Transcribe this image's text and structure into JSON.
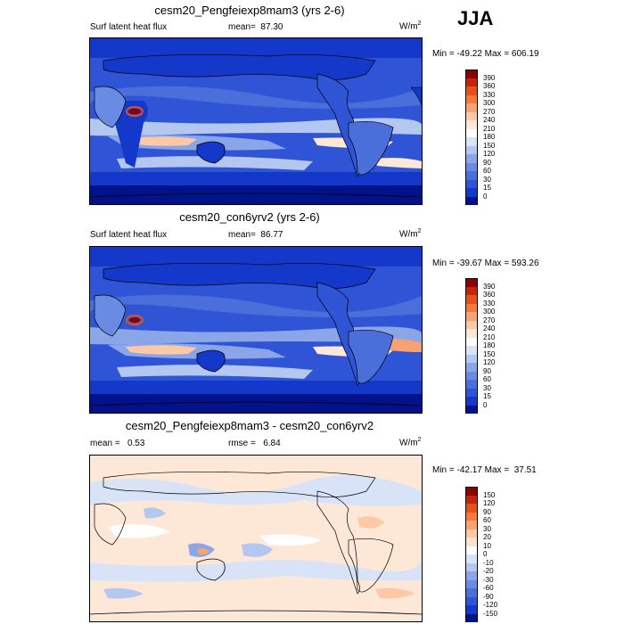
{
  "season": "JJA",
  "panels": [
    {
      "title": "cesm20_Pengfeiexp8mam3 (yrs 2-6)",
      "left_label": "Surf latent heat flux",
      "stat_label": "mean=",
      "stat_value": "87.30",
      "units_base": "W/m",
      "units_exp": "2",
      "minmax": "Min = -49.22 Max = 606.19",
      "levels": [
        "390",
        "360",
        "330",
        "300",
        "270",
        "240",
        "210",
        "180",
        "150",
        "120",
        "90",
        "60",
        "30",
        "15",
        "0"
      ],
      "colors": [
        "#8b0000",
        "#c4240c",
        "#e6501a",
        "#f47a3c",
        "#f9a271",
        "#fcc8a6",
        "#fde8d8",
        "#ffffff",
        "#d9e3f7",
        "#b3c7f0",
        "#8aa6e8",
        "#6a8be3",
        "#4a6fdb",
        "#2f55d6",
        "#1438c9",
        "#02128a"
      ]
    },
    {
      "title": "cesm20_con6yrv2 (yrs 2-6)",
      "left_label": "Surf latent heat flux",
      "stat_label": "mean=",
      "stat_value": "86.77",
      "units_base": "W/m",
      "units_exp": "2",
      "minmax": "Min = -39.67 Max = 593.26",
      "levels": [
        "390",
        "360",
        "330",
        "300",
        "270",
        "240",
        "210",
        "180",
        "150",
        "120",
        "90",
        "60",
        "30",
        "15",
        "0"
      ],
      "colors": [
        "#8b0000",
        "#c4240c",
        "#e6501a",
        "#f47a3c",
        "#f9a271",
        "#fcc8a6",
        "#fde8d8",
        "#ffffff",
        "#d9e3f7",
        "#b3c7f0",
        "#8aa6e8",
        "#6a8be3",
        "#4a6fdb",
        "#2f55d6",
        "#1438c9",
        "#02128a"
      ]
    },
    {
      "title": "cesm20_Pengfeiexp8mam3 - cesm20_con6yrv2",
      "left_label": "mean =   0.53",
      "stat_label": "rmse =",
      "stat_value": "6.84",
      "units_base": "W/m",
      "units_exp": "2",
      "minmax": "Min = -42.17 Max =  37.51",
      "levels": [
        "150",
        "120",
        "90",
        "60",
        "30",
        "20",
        "10",
        "0",
        "-10",
        "-20",
        "-30",
        "-60",
        "-90",
        "-120",
        "-150"
      ],
      "colors": [
        "#8b0000",
        "#c4240c",
        "#e6501a",
        "#f47a3c",
        "#f9a271",
        "#fcc8a6",
        "#fde2cf",
        "#ffffff",
        "#d9e3f7",
        "#b3c7f0",
        "#8aa6e8",
        "#6a8be3",
        "#4a6fdb",
        "#2f55d6",
        "#1438c9",
        "#02128a"
      ]
    }
  ]
}
